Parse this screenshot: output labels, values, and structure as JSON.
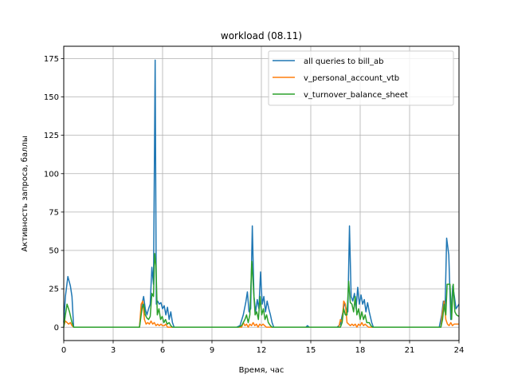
{
  "chart_data": {
    "type": "line",
    "title": "workload (08.11)",
    "xlabel": "Время, час",
    "ylabel": "Активность запроса, баллы",
    "xlim": [
      0,
      24
    ],
    "ylim": [
      -8.7,
      183
    ],
    "xticks": [
      0,
      3,
      6,
      9,
      12,
      15,
      18,
      21,
      24
    ],
    "xtick_labels": [
      "0",
      "3",
      "6",
      "9",
      "12",
      "15",
      "18",
      "21",
      "24"
    ],
    "yticks": [
      0,
      25,
      50,
      75,
      100,
      125,
      150,
      175
    ],
    "ytick_labels": [
      "0",
      "25",
      "50",
      "75",
      "100",
      "125",
      "150",
      "175"
    ],
    "grid": true,
    "legend_position": "top-right",
    "series": [
      {
        "name": "all queries to bill_ab",
        "color": "#1f77b4",
        "points": [
          [
            0,
            3
          ],
          [
            0.1,
            20
          ],
          [
            0.25,
            33
          ],
          [
            0.4,
            27
          ],
          [
            0.5,
            20
          ],
          [
            0.6,
            0
          ],
          [
            4.6,
            0
          ],
          [
            4.75,
            15
          ],
          [
            4.85,
            20
          ],
          [
            4.95,
            12
          ],
          [
            5.05,
            8
          ],
          [
            5.15,
            12
          ],
          [
            5.25,
            15
          ],
          [
            5.35,
            39
          ],
          [
            5.45,
            28
          ],
          [
            5.55,
            174
          ],
          [
            5.62,
            15
          ],
          [
            5.7,
            17
          ],
          [
            5.8,
            15
          ],
          [
            5.9,
            16
          ],
          [
            6.0,
            12
          ],
          [
            6.1,
            14
          ],
          [
            6.2,
            8
          ],
          [
            6.3,
            13
          ],
          [
            6.4,
            5
          ],
          [
            6.5,
            10
          ],
          [
            6.6,
            3
          ],
          [
            6.7,
            0
          ],
          [
            10.5,
            0
          ],
          [
            10.7,
            1
          ],
          [
            10.9,
            8
          ],
          [
            11.05,
            16
          ],
          [
            11.15,
            23
          ],
          [
            11.25,
            10
          ],
          [
            11.35,
            12
          ],
          [
            11.45,
            66
          ],
          [
            11.55,
            20
          ],
          [
            11.65,
            10
          ],
          [
            11.75,
            18
          ],
          [
            11.85,
            12
          ],
          [
            11.95,
            36
          ],
          [
            12.05,
            15
          ],
          [
            12.15,
            20
          ],
          [
            12.25,
            10
          ],
          [
            12.35,
            17
          ],
          [
            12.45,
            12
          ],
          [
            12.55,
            8
          ],
          [
            12.65,
            3
          ],
          [
            12.75,
            0
          ],
          [
            14.7,
            0
          ],
          [
            14.8,
            1
          ],
          [
            14.9,
            0
          ],
          [
            16.6,
            0
          ],
          [
            16.8,
            2
          ],
          [
            16.95,
            10
          ],
          [
            17.05,
            16
          ],
          [
            17.15,
            12
          ],
          [
            17.25,
            10
          ],
          [
            17.35,
            66
          ],
          [
            17.45,
            20
          ],
          [
            17.55,
            17
          ],
          [
            17.65,
            22
          ],
          [
            17.75,
            12
          ],
          [
            17.85,
            26
          ],
          [
            17.95,
            15
          ],
          [
            18.05,
            21
          ],
          [
            18.15,
            15
          ],
          [
            18.25,
            18
          ],
          [
            18.35,
            10
          ],
          [
            18.45,
            16
          ],
          [
            18.55,
            10
          ],
          [
            18.7,
            3
          ],
          [
            18.8,
            0
          ],
          [
            22.8,
            0
          ],
          [
            22.95,
            8
          ],
          [
            23.05,
            17
          ],
          [
            23.15,
            10
          ],
          [
            23.25,
            58
          ],
          [
            23.38,
            47
          ],
          [
            23.5,
            5
          ],
          [
            23.62,
            27
          ],
          [
            23.72,
            20
          ],
          [
            23.82,
            12
          ],
          [
            24,
            15
          ]
        ]
      },
      {
        "name": "v_personal_account_vtb",
        "color": "#ff7f0e",
        "points": [
          [
            0,
            1
          ],
          [
            0.1,
            4
          ],
          [
            0.2,
            3
          ],
          [
            0.3,
            2
          ],
          [
            0.4,
            3
          ],
          [
            0.5,
            1
          ],
          [
            0.6,
            0
          ],
          [
            4.6,
            0
          ],
          [
            4.7,
            15
          ],
          [
            4.8,
            17
          ],
          [
            4.9,
            5
          ],
          [
            5.0,
            2
          ],
          [
            5.1,
            3
          ],
          [
            5.2,
            2
          ],
          [
            5.3,
            4
          ],
          [
            5.4,
            2
          ],
          [
            5.5,
            3
          ],
          [
            5.6,
            1
          ],
          [
            5.7,
            2
          ],
          [
            5.8,
            1
          ],
          [
            5.9,
            2
          ],
          [
            6.0,
            1
          ],
          [
            6.1,
            1
          ],
          [
            6.2,
            2
          ],
          [
            6.3,
            0
          ],
          [
            6.6,
            0
          ],
          [
            10.8,
            0
          ],
          [
            10.9,
            3
          ],
          [
            11.0,
            1
          ],
          [
            11.1,
            2
          ],
          [
            11.2,
            0
          ],
          [
            11.3,
            2
          ],
          [
            11.4,
            1
          ],
          [
            11.5,
            3
          ],
          [
            11.6,
            1
          ],
          [
            11.7,
            2
          ],
          [
            11.8,
            0
          ],
          [
            11.9,
            2
          ],
          [
            12.0,
            1
          ],
          [
            12.1,
            2
          ],
          [
            12.2,
            1
          ],
          [
            12.3,
            0
          ],
          [
            16.7,
            0
          ],
          [
            16.8,
            5
          ],
          [
            16.9,
            3
          ],
          [
            17.0,
            17
          ],
          [
            17.1,
            15
          ],
          [
            17.2,
            3
          ],
          [
            17.3,
            2
          ],
          [
            17.4,
            1
          ],
          [
            17.5,
            2
          ],
          [
            17.6,
            1
          ],
          [
            17.7,
            2
          ],
          [
            17.8,
            0
          ],
          [
            17.9,
            2
          ],
          [
            18.0,
            1
          ],
          [
            18.1,
            3
          ],
          [
            18.2,
            1
          ],
          [
            18.3,
            2
          ],
          [
            18.4,
            1
          ],
          [
            18.5,
            0
          ],
          [
            18.8,
            0
          ],
          [
            22.9,
            0
          ],
          [
            23.0,
            10
          ],
          [
            23.1,
            17
          ],
          [
            23.2,
            5
          ],
          [
            23.3,
            2
          ],
          [
            23.4,
            1
          ],
          [
            23.5,
            3
          ],
          [
            23.6,
            1
          ],
          [
            23.7,
            2
          ],
          [
            23.8,
            2
          ],
          [
            24,
            2
          ]
        ]
      },
      {
        "name": "v_turnover_balance_sheet",
        "color": "#2ca02c",
        "points": [
          [
            0,
            0
          ],
          [
            0.1,
            8
          ],
          [
            0.2,
            15
          ],
          [
            0.35,
            10
          ],
          [
            0.5,
            3
          ],
          [
            0.6,
            0
          ],
          [
            4.6,
            0
          ],
          [
            4.75,
            12
          ],
          [
            4.85,
            15
          ],
          [
            4.95,
            8
          ],
          [
            5.05,
            6
          ],
          [
            5.15,
            5
          ],
          [
            5.25,
            7
          ],
          [
            5.35,
            22
          ],
          [
            5.45,
            20
          ],
          [
            5.52,
            48
          ],
          [
            5.6,
            40
          ],
          [
            5.68,
            8
          ],
          [
            5.78,
            12
          ],
          [
            5.88,
            5
          ],
          [
            5.98,
            7
          ],
          [
            6.08,
            3
          ],
          [
            6.18,
            5
          ],
          [
            6.28,
            2
          ],
          [
            6.4,
            3
          ],
          [
            6.5,
            1
          ],
          [
            6.6,
            0
          ],
          [
            10.6,
            0
          ],
          [
            10.8,
            1
          ],
          [
            10.9,
            3
          ],
          [
            11.0,
            5
          ],
          [
            11.1,
            8
          ],
          [
            11.2,
            3
          ],
          [
            11.3,
            8
          ],
          [
            11.42,
            43
          ],
          [
            11.52,
            25
          ],
          [
            11.62,
            8
          ],
          [
            11.72,
            10
          ],
          [
            11.82,
            5
          ],
          [
            11.92,
            20
          ],
          [
            12.02,
            8
          ],
          [
            12.12,
            12
          ],
          [
            12.22,
            5
          ],
          [
            12.32,
            8
          ],
          [
            12.42,
            3
          ],
          [
            12.55,
            1
          ],
          [
            12.65,
            0
          ],
          [
            16.8,
            0
          ],
          [
            16.9,
            3
          ],
          [
            17.0,
            12
          ],
          [
            17.1,
            8
          ],
          [
            17.2,
            8
          ],
          [
            17.3,
            30
          ],
          [
            17.4,
            16
          ],
          [
            17.5,
            15
          ],
          [
            17.6,
            10
          ],
          [
            17.7,
            20
          ],
          [
            17.8,
            8
          ],
          [
            17.9,
            12
          ],
          [
            18.0,
            5
          ],
          [
            18.1,
            10
          ],
          [
            18.2,
            5
          ],
          [
            18.3,
            8
          ],
          [
            18.4,
            3
          ],
          [
            18.55,
            3
          ],
          [
            18.65,
            1
          ],
          [
            18.75,
            0
          ],
          [
            22.9,
            0
          ],
          [
            23.0,
            5
          ],
          [
            23.1,
            15
          ],
          [
            23.2,
            8
          ],
          [
            23.28,
            28
          ],
          [
            23.45,
            28
          ],
          [
            23.55,
            5
          ],
          [
            23.65,
            28
          ],
          [
            23.75,
            10
          ],
          [
            23.85,
            8
          ],
          [
            24,
            7
          ]
        ]
      }
    ]
  }
}
